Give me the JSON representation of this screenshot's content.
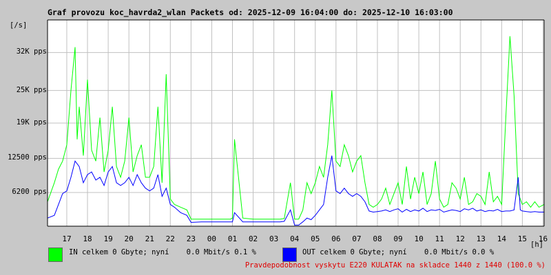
{
  "title": "Graf provozu koc_havrda2_wlan Packets od: 2025-12-09 16:04:00 do: 2025-12-10 16:03:00",
  "y_unit": "[/s]",
  "x_unit": "[h]",
  "legend": {
    "in": {
      "color": "#00ff00",
      "text": "IN celkem 0 Gbyte; nyní    0.0 Mbit/s 0.1 %"
    },
    "out": {
      "color": "#0000ff",
      "text": "OUT celkem 0 Gbyte; nyní    0.0 Mbit/s 0.0 %"
    }
  },
  "note": "Pravdepodobnost vyskytu E220 KULATAK na skladce 1440 z 1440 (100.0 %)",
  "chart_data": {
    "type": "line",
    "title": "Graf provozu koc_havrda2_wlan Packets od: 2025-12-09 16:04:00 do: 2025-12-10 16:03:00",
    "ylabel": "[/s]",
    "xlabel": "[h]",
    "y_ticks": [
      {
        "value": 6200,
        "label": "6200 pps"
      },
      {
        "value": 12500,
        "label": "12500 pps"
      },
      {
        "value": 19000,
        "label": "19K pps"
      },
      {
        "value": 25000,
        "label": "25K pps"
      },
      {
        "value": 32000,
        "label": "32K pps"
      }
    ],
    "x_ticks": [
      "17",
      "18",
      "19",
      "20",
      "21",
      "22",
      "23",
      "00",
      "01",
      "02",
      "03",
      "04",
      "05",
      "06",
      "07",
      "08",
      "09",
      "10",
      "11",
      "12",
      "13",
      "14",
      "15",
      "16"
    ],
    "x_range_hours": [
      16.07,
      40.05
    ],
    "ylim": [
      0,
      38000
    ],
    "grid": true,
    "series": [
      {
        "name": "IN",
        "color": "#00ff00",
        "x": [
          16.07,
          16.4,
          16.6,
          16.8,
          17.0,
          17.2,
          17.4,
          17.5,
          17.6,
          17.8,
          18.0,
          18.2,
          18.4,
          18.6,
          18.8,
          19.0,
          19.2,
          19.4,
          19.6,
          19.8,
          20.0,
          20.2,
          20.4,
          20.6,
          20.8,
          21.0,
          21.2,
          21.4,
          21.6,
          21.8,
          22.0,
          22.2,
          22.5,
          22.8,
          23.0,
          23.5,
          24.0,
          24.5,
          24.9,
          25.0,
          25.1,
          25.5,
          26.0,
          26.5,
          27.0,
          27.3,
          27.5,
          27.8,
          28.0,
          28.2,
          28.4,
          28.6,
          28.8,
          29.0,
          29.2,
          29.4,
          29.6,
          29.8,
          30.0,
          30.2,
          30.4,
          30.6,
          30.8,
          31.0,
          31.2,
          31.4,
          31.6,
          31.8,
          32.0,
          32.2,
          32.4,
          32.6,
          32.8,
          33.0,
          33.2,
          33.4,
          33.6,
          33.8,
          34.0,
          34.2,
          34.4,
          34.6,
          34.8,
          35.0,
          35.2,
          35.4,
          35.6,
          35.8,
          36.0,
          36.2,
          36.4,
          36.6,
          36.8,
          37.0,
          37.2,
          37.4,
          37.6,
          37.8,
          38.0,
          38.2,
          38.4,
          38.6,
          38.8,
          38.9,
          39.0,
          39.2,
          39.4,
          39.6,
          39.8,
          40.05
        ],
        "values": [
          4500,
          8000,
          10500,
          12000,
          15000,
          25000,
          33000,
          16000,
          22000,
          13000,
          27000,
          14000,
          12000,
          20000,
          10000,
          14000,
          22000,
          11000,
          9000,
          12000,
          20000,
          10000,
          13000,
          15000,
          9000,
          9000,
          11000,
          22000,
          8000,
          28000,
          5000,
          4000,
          3500,
          3000,
          1300,
          1300,
          1300,
          1300,
          1300,
          1500,
          16000,
          1500,
          1300,
          1300,
          1300,
          1300,
          1400,
          8000,
          1300,
          1300,
          3000,
          8000,
          6000,
          8000,
          11000,
          9000,
          15000,
          25000,
          12000,
          11000,
          15000,
          13000,
          10000,
          12000,
          13000,
          8000,
          4000,
          3500,
          4000,
          5000,
          7000,
          4000,
          6000,
          8000,
          4000,
          11000,
          5000,
          9000,
          6000,
          10000,
          4000,
          6000,
          12000,
          5000,
          3500,
          4000,
          8000,
          7000,
          5000,
          9000,
          4000,
          4500,
          6000,
          5500,
          4000,
          10000,
          4500,
          5500,
          4000,
          20000,
          35000,
          24000,
          6000,
          5000,
          4000,
          4500,
          3500,
          4500,
          3500,
          4000
        ]
      },
      {
        "name": "OUT",
        "color": "#0000ff",
        "x": [
          16.07,
          16.4,
          16.6,
          16.8,
          17.0,
          17.2,
          17.4,
          17.6,
          17.8,
          18.0,
          18.2,
          18.4,
          18.6,
          18.8,
          19.0,
          19.2,
          19.4,
          19.6,
          19.8,
          20.0,
          20.2,
          20.4,
          20.6,
          20.8,
          21.0,
          21.2,
          21.4,
          21.6,
          21.8,
          22.0,
          22.2,
          22.5,
          22.8,
          23.0,
          23.5,
          24.0,
          24.5,
          25.0,
          25.1,
          25.5,
          26.0,
          26.5,
          27.0,
          27.3,
          27.5,
          27.8,
          28.0,
          28.2,
          28.4,
          28.6,
          28.8,
          29.0,
          29.2,
          29.4,
          29.6,
          29.8,
          30.0,
          30.2,
          30.4,
          30.6,
          30.8,
          31.0,
          31.2,
          31.4,
          31.6,
          31.8,
          32.0,
          32.2,
          32.4,
          32.6,
          32.8,
          33.0,
          33.2,
          33.4,
          33.6,
          33.8,
          34.0,
          34.2,
          34.4,
          34.6,
          34.8,
          35.0,
          35.2,
          35.4,
          35.6,
          35.8,
          36.0,
          36.2,
          36.4,
          36.6,
          36.8,
          37.0,
          37.2,
          37.4,
          37.6,
          37.8,
          38.0,
          38.2,
          38.4,
          38.6,
          38.8,
          38.9,
          39.0,
          39.2,
          39.4,
          39.6,
          39.8,
          40.05
        ],
        "values": [
          1500,
          2000,
          4000,
          6000,
          6500,
          9000,
          12000,
          11000,
          8000,
          9500,
          10000,
          8500,
          9000,
          7500,
          10000,
          11000,
          8000,
          7500,
          8000,
          9000,
          7500,
          9500,
          8000,
          7000,
          6500,
          7000,
          9500,
          5500,
          7000,
          4000,
          3500,
          2500,
          2000,
          700,
          800,
          800,
          800,
          800,
          2500,
          800,
          800,
          800,
          800,
          800,
          900,
          3000,
          200,
          200,
          800,
          1500,
          1200,
          2000,
          3000,
          4000,
          9000,
          13000,
          6500,
          6000,
          7000,
          6000,
          5500,
          6000,
          5500,
          4500,
          2800,
          2600,
          2700,
          2800,
          3000,
          2700,
          3000,
          3200,
          2600,
          3100,
          2700,
          3000,
          2800,
          3300,
          2700,
          3000,
          2900,
          3100,
          2600,
          2800,
          3000,
          2900,
          2700,
          3200,
          3000,
          3300,
          2800,
          3000,
          2700,
          2900,
          2800,
          3100,
          2700,
          2800,
          2800,
          3000,
          9000,
          3000,
          2800,
          2700,
          2600,
          2700,
          2600,
          2600
        ]
      }
    ]
  }
}
